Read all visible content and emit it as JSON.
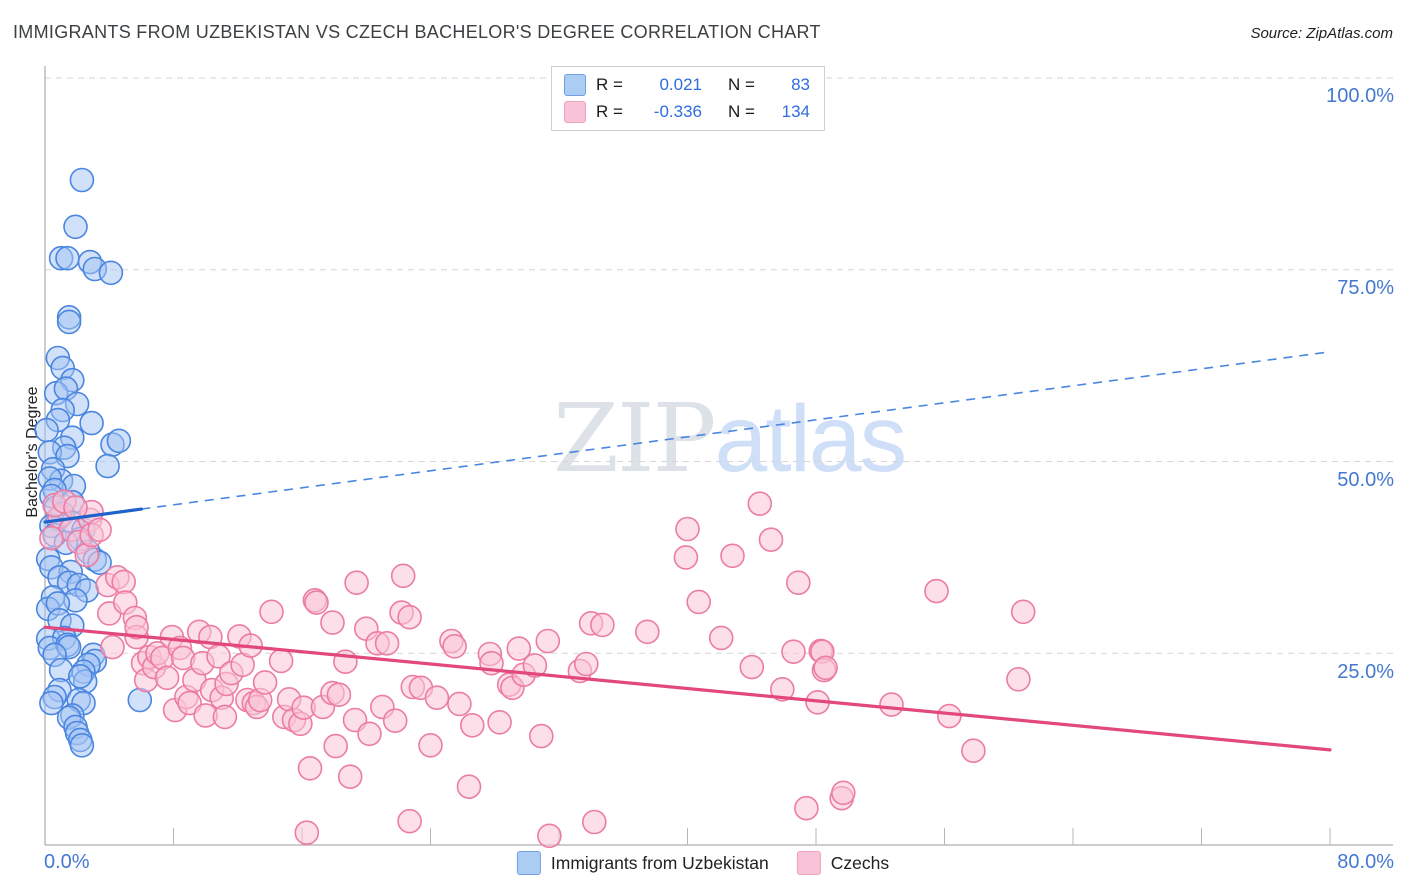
{
  "header": {
    "title": "IMMIGRANTS FROM UZBEKISTAN VS CZECH BACHELOR'S DEGREE CORRELATION CHART",
    "source": "Source: ZipAtlas.com"
  },
  "watermark": {
    "zip": "ZIP",
    "atlas": "atlas"
  },
  "legend_box": {
    "rows": [
      {
        "r_label": "R =",
        "r_value": "0.021",
        "n_label": "N =",
        "n_value": "83"
      },
      {
        "r_label": "R =",
        "r_value": "-0.336",
        "n_label": "N =",
        "n_value": "134"
      }
    ]
  },
  "axes": {
    "y_label": "Bachelor's Degree",
    "y_tick_labels": [
      "100.0%",
      "75.0%",
      "50.0%",
      "25.0%"
    ],
    "x_min_label": "0.0%",
    "x_max_label": "80.0%"
  },
  "bottom_legend": {
    "items": [
      {
        "label": "Immigrants from Uzbekistan"
      },
      {
        "label": "Czechs"
      }
    ]
  },
  "chart_data": {
    "type": "scatter",
    "title": "Immigrants from Uzbekistan vs Czech Bachelor's Degree",
    "x_axis": {
      "min": 0,
      "max": 80,
      "unit": "%",
      "tick_step": 8,
      "min_label": "0.0%",
      "max_label": "80.0%"
    },
    "y_axis": {
      "label": "Bachelor's Degree",
      "min": 0,
      "max": 100,
      "unit": "%",
      "gridlines": [
        25,
        50,
        75,
        100
      ],
      "grid_style": "dashed"
    },
    "colors": {
      "grid": "#d6d6d6",
      "axis": "#9b9b9b",
      "tick": "#b5b5b5",
      "blue_fill": "#a3c4f3",
      "blue_stroke": "#4a86e0",
      "blue_trend": "#1f62c9",
      "pink_fill": "#f9c4d7",
      "pink_stroke": "#ec7ca4",
      "pink_trend": "#e2487b"
    },
    "series": [
      {
        "name": "Immigrants from Uzbekistan",
        "R": 0.021,
        "N": 83,
        "fill": "#a3c4f3",
        "fill_opacity": 0.5,
        "stroke": "#4a86e0",
        "trend_color": "#1f62c9",
        "trend": {
          "solid": [
            [
              0,
              42.1
            ],
            [
              6,
              43.8
            ]
          ],
          "dashed": [
            [
              6,
              43.8
            ],
            [
              80,
              64.3
            ]
          ]
        },
        "points": [
          [
            2.3,
            86.7
          ],
          [
            1.9,
            80.6
          ],
          [
            1.0,
            76.5
          ],
          [
            1.4,
            76.5
          ],
          [
            2.8,
            76.0
          ],
          [
            3.1,
            75.1
          ],
          [
            4.1,
            74.6
          ],
          [
            1.5,
            68.8
          ],
          [
            1.5,
            68.2
          ],
          [
            0.8,
            63.5
          ],
          [
            1.1,
            62.2
          ],
          [
            1.7,
            60.6
          ],
          [
            0.7,
            58.9
          ],
          [
            1.3,
            59.5
          ],
          [
            2.0,
            57.5
          ],
          [
            1.1,
            56.7
          ],
          [
            0.8,
            55.4
          ],
          [
            2.9,
            55.0
          ],
          [
            0.1,
            54.1
          ],
          [
            1.7,
            53.1
          ],
          [
            1.2,
            51.8
          ],
          [
            0.3,
            51.2
          ],
          [
            1.4,
            50.7
          ],
          [
            4.2,
            52.2
          ],
          [
            4.6,
            52.7
          ],
          [
            3.9,
            49.4
          ],
          [
            0.5,
            49.0
          ],
          [
            1.0,
            47.5
          ],
          [
            0.3,
            47.8
          ],
          [
            1.8,
            46.8
          ],
          [
            0.6,
            46.3
          ],
          [
            0.4,
            45.5
          ],
          [
            1.7,
            44.7
          ],
          [
            0.7,
            44.0
          ],
          [
            1.1,
            43.2
          ],
          [
            0.8,
            42.5
          ],
          [
            0.4,
            41.6
          ],
          [
            0.6,
            40.4
          ],
          [
            1.7,
            42.0
          ],
          [
            2.4,
            41.1
          ],
          [
            2.2,
            39.9
          ],
          [
            1.3,
            39.4
          ],
          [
            2.7,
            38.2
          ],
          [
            3.1,
            37.2
          ],
          [
            0.2,
            37.3
          ],
          [
            3.4,
            36.8
          ],
          [
            0.4,
            36.2
          ],
          [
            1.6,
            35.6
          ],
          [
            0.9,
            34.9
          ],
          [
            1.5,
            34.2
          ],
          [
            2.1,
            33.9
          ],
          [
            2.6,
            33.2
          ],
          [
            1.9,
            31.9
          ],
          [
            0.5,
            32.3
          ],
          [
            0.2,
            30.8
          ],
          [
            0.8,
            31.5
          ],
          [
            0.9,
            29.3
          ],
          [
            1.7,
            28.6
          ],
          [
            0.2,
            26.9
          ],
          [
            1.2,
            27.0
          ],
          [
            0.3,
            25.7
          ],
          [
            1.4,
            26.1
          ],
          [
            1.5,
            25.8
          ],
          [
            0.6,
            24.8
          ],
          [
            3.0,
            24.8
          ],
          [
            3.1,
            24.0
          ],
          [
            2.7,
            23.5
          ],
          [
            1.0,
            22.8
          ],
          [
            2.4,
            22.6
          ],
          [
            2.5,
            21.3
          ],
          [
            2.2,
            22.0
          ],
          [
            0.9,
            20.2
          ],
          [
            0.6,
            19.3
          ],
          [
            0.4,
            18.5
          ],
          [
            2.1,
            18.9
          ],
          [
            2.4,
            18.5
          ],
          [
            1.7,
            16.9
          ],
          [
            1.5,
            16.6
          ],
          [
            1.9,
            15.4
          ],
          [
            2.0,
            14.6
          ],
          [
            2.2,
            13.7
          ],
          [
            2.3,
            13.0
          ],
          [
            5.9,
            18.9
          ]
        ]
      },
      {
        "name": "Czechs",
        "R": -0.336,
        "N": 134,
        "fill": "#f9c4d7",
        "fill_opacity": 0.55,
        "stroke": "#ec7ca4",
        "trend_color": "#e2487b",
        "trend": {
          "solid": [
            [
              0,
              28.4
            ],
            [
              80,
              12.4
            ]
          ]
        },
        "points": [
          [
            0.9,
            42.8
          ],
          [
            1.6,
            41.1
          ],
          [
            2.1,
            39.5
          ],
          [
            2.6,
            37.8
          ],
          [
            2.8,
            42.4
          ],
          [
            2.9,
            40.4
          ],
          [
            2.9,
            43.4
          ],
          [
            3.4,
            41.1
          ],
          [
            0.6,
            44.3
          ],
          [
            1.2,
            44.8
          ],
          [
            1.9,
            44.0
          ],
          [
            0.4,
            40.0
          ],
          [
            3.9,
            33.9
          ],
          [
            4.0,
            30.2
          ],
          [
            4.2,
            25.8
          ],
          [
            4.5,
            34.9
          ],
          [
            4.9,
            34.3
          ],
          [
            5.0,
            31.6
          ],
          [
            5.6,
            29.6
          ],
          [
            5.7,
            27.1
          ],
          [
            5.7,
            28.4
          ],
          [
            6.1,
            23.7
          ],
          [
            6.3,
            21.5
          ],
          [
            6.5,
            24.5
          ],
          [
            6.8,
            23.2
          ],
          [
            7.0,
            25.0
          ],
          [
            7.3,
            24.4
          ],
          [
            7.6,
            21.8
          ],
          [
            7.9,
            27.1
          ],
          [
            8.1,
            17.6
          ],
          [
            8.4,
            25.7
          ],
          [
            8.6,
            24.4
          ],
          [
            8.8,
            19.3
          ],
          [
            9.0,
            18.5
          ],
          [
            9.3,
            21.5
          ],
          [
            9.6,
            27.8
          ],
          [
            9.8,
            23.7
          ],
          [
            10.0,
            16.9
          ],
          [
            10.3,
            27.1
          ],
          [
            10.4,
            20.2
          ],
          [
            10.8,
            24.6
          ],
          [
            11.0,
            19.2
          ],
          [
            11.3,
            21.0
          ],
          [
            11.2,
            16.7
          ],
          [
            11.6,
            22.4
          ],
          [
            12.1,
            27.2
          ],
          [
            12.3,
            23.5
          ],
          [
            12.6,
            18.9
          ],
          [
            12.8,
            26.0
          ],
          [
            13.0,
            18.5
          ],
          [
            13.2,
            18.0
          ],
          [
            13.4,
            18.9
          ],
          [
            13.7,
            21.2
          ],
          [
            14.1,
            30.4
          ],
          [
            14.7,
            24.0
          ],
          [
            14.9,
            16.7
          ],
          [
            15.2,
            19.0
          ],
          [
            15.5,
            16.3
          ],
          [
            15.9,
            15.8
          ],
          [
            16.1,
            17.9
          ],
          [
            16.3,
            1.6
          ],
          [
            16.5,
            10.0
          ],
          [
            16.8,
            31.9
          ],
          [
            16.9,
            31.6
          ],
          [
            17.3,
            18.0
          ],
          [
            17.9,
            29.0
          ],
          [
            17.9,
            19.8
          ],
          [
            18.1,
            12.9
          ],
          [
            18.3,
            19.6
          ],
          [
            18.7,
            23.9
          ],
          [
            19.0,
            8.9
          ],
          [
            19.3,
            16.3
          ],
          [
            19.4,
            34.2
          ],
          [
            20.0,
            28.2
          ],
          [
            20.2,
            14.5
          ],
          [
            20.7,
            26.3
          ],
          [
            21.0,
            18.0
          ],
          [
            21.3,
            26.3
          ],
          [
            21.8,
            16.2
          ],
          [
            22.2,
            30.3
          ],
          [
            22.3,
            35.1
          ],
          [
            22.7,
            29.7
          ],
          [
            22.7,
            3.1
          ],
          [
            22.9,
            20.6
          ],
          [
            23.4,
            20.5
          ],
          [
            24.0,
            13.0
          ],
          [
            24.4,
            19.2
          ],
          [
            25.3,
            26.6
          ],
          [
            25.5,
            25.9
          ],
          [
            25.8,
            18.4
          ],
          [
            26.4,
            7.6
          ],
          [
            26.6,
            15.6
          ],
          [
            27.7,
            24.9
          ],
          [
            27.8,
            23.7
          ],
          [
            28.3,
            16.0
          ],
          [
            28.9,
            20.9
          ],
          [
            29.1,
            20.5
          ],
          [
            29.5,
            25.6
          ],
          [
            29.8,
            22.2
          ],
          [
            30.5,
            23.4
          ],
          [
            30.9,
            14.2
          ],
          [
            31.3,
            26.6
          ],
          [
            31.4,
            1.2
          ],
          [
            33.3,
            22.7
          ],
          [
            33.7,
            23.6
          ],
          [
            34.0,
            28.9
          ],
          [
            34.2,
            3.0
          ],
          [
            34.7,
            28.7
          ],
          [
            37.5,
            27.8
          ],
          [
            39.9,
            37.5
          ],
          [
            40.0,
            41.2
          ],
          [
            40.7,
            31.7
          ],
          [
            42.1,
            27.0
          ],
          [
            42.8,
            37.7
          ],
          [
            44.0,
            23.2
          ],
          [
            44.5,
            44.5
          ],
          [
            45.2,
            39.8
          ],
          [
            45.9,
            20.3
          ],
          [
            46.6,
            25.2
          ],
          [
            46.9,
            34.2
          ],
          [
            47.4,
            4.8
          ],
          [
            48.1,
            18.6
          ],
          [
            48.3,
            25.3
          ],
          [
            48.4,
            25.2
          ],
          [
            48.5,
            22.8
          ],
          [
            48.6,
            23.1
          ],
          [
            49.6,
            6.1
          ],
          [
            49.7,
            6.8
          ],
          [
            52.7,
            18.3
          ],
          [
            55.5,
            33.1
          ],
          [
            56.3,
            16.8
          ],
          [
            57.8,
            12.3
          ],
          [
            60.6,
            21.6
          ],
          [
            60.9,
            30.4
          ]
        ]
      }
    ]
  }
}
